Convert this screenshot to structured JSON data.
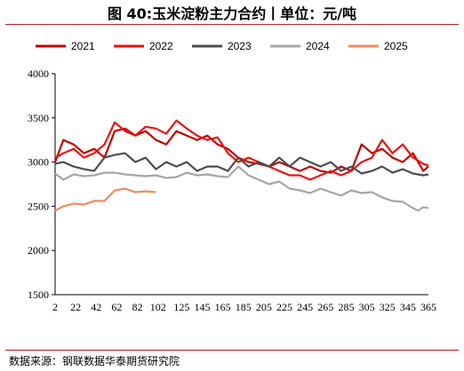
{
  "title": "图 40:玉米淀粉主力合约丨单位：元/吨",
  "source": "数据来源：钢联数据华泰期货研究院",
  "chart_data": {
    "type": "line",
    "title": "图 40:玉米淀粉主力合约丨单位：元/吨",
    "xlabel": "",
    "ylabel": "",
    "xlim": [
      2,
      365
    ],
    "ylim": [
      1500,
      4000
    ],
    "x_ticks": [
      2,
      22,
      42,
      62,
      82,
      102,
      125,
      145,
      165,
      185,
      205,
      225,
      245,
      265,
      285,
      305,
      325,
      345,
      365
    ],
    "y_ticks": [
      1500,
      2000,
      2500,
      3000,
      3500,
      4000
    ],
    "grid": false,
    "legend": "top",
    "series": [
      {
        "name": "2021",
        "color": "#c00000",
        "x": [
          2,
          10,
          20,
          30,
          40,
          50,
          60,
          70,
          80,
          90,
          100,
          110,
          120,
          130,
          140,
          150,
          160,
          170,
          180,
          190,
          200,
          210,
          220,
          230,
          240,
          250,
          260,
          270,
          280,
          290,
          300,
          310,
          320,
          330,
          340,
          350,
          360,
          365
        ],
        "y": [
          3000,
          3250,
          3200,
          3100,
          3150,
          3050,
          3350,
          3380,
          3300,
          3350,
          3250,
          3200,
          3350,
          3300,
          3250,
          3300,
          3200,
          3150,
          3050,
          3000,
          2980,
          2950,
          3000,
          2950,
          2900,
          2950,
          2900,
          2880,
          2950,
          2900,
          3200,
          3100,
          3150,
          3050,
          3000,
          3100,
          2900,
          2950
        ]
      },
      {
        "name": "2022",
        "color": "#ee1111",
        "x": [
          2,
          10,
          20,
          30,
          40,
          50,
          60,
          70,
          80,
          90,
          100,
          110,
          120,
          130,
          140,
          150,
          160,
          170,
          180,
          190,
          200,
          210,
          220,
          230,
          240,
          250,
          260,
          270,
          280,
          290,
          300,
          310,
          320,
          330,
          340,
          350,
          360,
          365
        ],
        "y": [
          3050,
          3100,
          3150,
          3050,
          3100,
          3200,
          3450,
          3350,
          3300,
          3400,
          3380,
          3320,
          3470,
          3380,
          3300,
          3250,
          3280,
          3100,
          3000,
          3050,
          3000,
          2950,
          2900,
          2850,
          2850,
          2800,
          2850,
          2900,
          2850,
          2900,
          3000,
          3050,
          3250,
          3100,
          3200,
          3050,
          2980,
          2960
        ]
      },
      {
        "name": "2023",
        "color": "#4d4d4d",
        "x": [
          2,
          10,
          20,
          30,
          40,
          50,
          60,
          70,
          80,
          90,
          100,
          110,
          120,
          130,
          140,
          150,
          160,
          170,
          180,
          190,
          200,
          210,
          220,
          230,
          240,
          250,
          260,
          270,
          280,
          290,
          300,
          310,
          320,
          330,
          340,
          350,
          360,
          365
        ],
        "y": [
          2980,
          3000,
          2950,
          2920,
          2900,
          3050,
          3080,
          3100,
          3000,
          3050,
          2920,
          3000,
          2950,
          3000,
          2900,
          2950,
          2950,
          2900,
          3050,
          2950,
          3000,
          2950,
          3050,
          2950,
          3050,
          3000,
          2950,
          3000,
          2900,
          2950,
          2870,
          2900,
          2950,
          2880,
          2920,
          2870,
          2850,
          2860
        ]
      },
      {
        "name": "2024",
        "color": "#a6a6a6",
        "x": [
          2,
          10,
          20,
          30,
          40,
          50,
          60,
          70,
          80,
          90,
          100,
          110,
          120,
          130,
          140,
          150,
          160,
          170,
          180,
          190,
          200,
          210,
          220,
          230,
          240,
          250,
          260,
          270,
          280,
          290,
          300,
          310,
          320,
          330,
          340,
          350,
          355,
          360,
          365
        ],
        "y": [
          2870,
          2800,
          2860,
          2840,
          2850,
          2880,
          2880,
          2860,
          2850,
          2840,
          2850,
          2820,
          2830,
          2880,
          2850,
          2860,
          2840,
          2830,
          2950,
          2850,
          2800,
          2750,
          2780,
          2700,
          2680,
          2650,
          2700,
          2660,
          2620,
          2680,
          2650,
          2660,
          2600,
          2560,
          2550,
          2480,
          2450,
          2490,
          2480
        ]
      },
      {
        "name": "2025",
        "color": "#f08c64",
        "x": [
          2,
          10,
          20,
          30,
          40,
          50,
          55,
          60,
          70,
          80,
          90,
          100
        ],
        "y": [
          2450,
          2500,
          2530,
          2520,
          2560,
          2560,
          2620,
          2680,
          2700,
          2660,
          2670,
          2660
        ]
      }
    ]
  }
}
